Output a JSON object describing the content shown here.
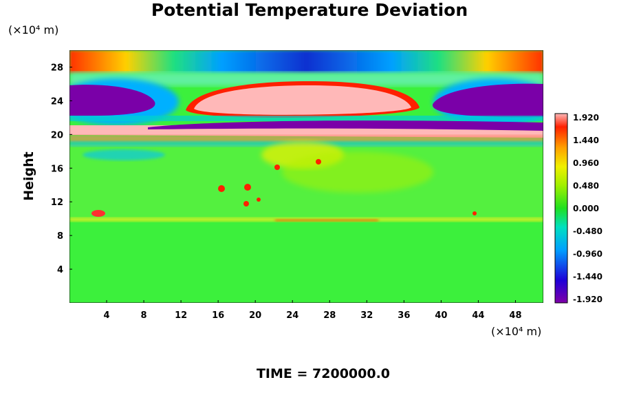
{
  "chart_data": {
    "type": "heatmap",
    "title": "Potential Temperature Deviation",
    "xlabel": "",
    "ylabel": "Height",
    "x_unit": "(×10⁴ m)",
    "y_unit": "(×10⁴ m)",
    "xlim": [
      0,
      51
    ],
    "ylim": [
      0,
      30
    ],
    "xticks": [
      4,
      8,
      12,
      16,
      20,
      24,
      28,
      32,
      36,
      40,
      44,
      48
    ],
    "yticks": [
      4,
      8,
      12,
      16,
      20,
      24,
      28
    ],
    "time_label": "TIME = 7200000.0",
    "colorbar": {
      "min": -1.92,
      "max": 1.92,
      "labels": [
        "1.920",
        "1.440",
        "0.960",
        "0.480",
        "0.000",
        "-0.480",
        "-0.960",
        "-1.440",
        "-1.920"
      ]
    },
    "features": [
      {
        "desc": "warm band top edge",
        "x": [
          0,
          51
        ],
        "y": [
          28,
          30
        ],
        "value": 1.5
      },
      {
        "desc": "cold core top center",
        "x": [
          16,
          34
        ],
        "y": [
          28.2,
          29.6
        ],
        "value": -1.6
      },
      {
        "desc": "warm dome center",
        "x": [
          13,
          37
        ],
        "y": [
          21.5,
          26
        ],
        "value": 1.92
      },
      {
        "desc": "cold region left",
        "x": [
          0,
          9
        ],
        "y": [
          21,
          26
        ],
        "value": -1.92
      },
      {
        "desc": "cold region right",
        "x": [
          38,
          51
        ],
        "y": [
          21,
          26
        ],
        "value": -1.92
      },
      {
        "desc": "warm layer",
        "x": [
          0,
          51
        ],
        "y": [
          19.2,
          20.8
        ],
        "value": 1.92
      },
      {
        "desc": "cold thin layer",
        "x": [
          10,
          51
        ],
        "y": [
          20.3,
          21.3
        ],
        "value": -1.92
      },
      {
        "desc": "near-zero lower atmosphere",
        "x": [
          0,
          51
        ],
        "y": [
          0,
          19
        ],
        "value": 0.0
      }
    ]
  }
}
